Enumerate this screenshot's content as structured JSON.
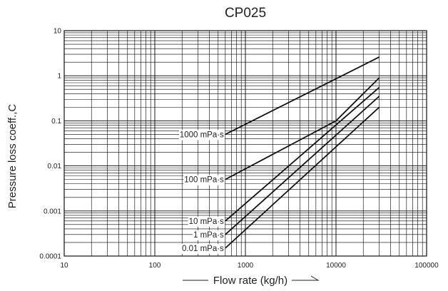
{
  "chart_data": {
    "type": "line",
    "title": "CP025",
    "xlabel": "Flow rate (kg/h)",
    "ylabel": "Pressure loss coeff.,C",
    "x_scale": "log",
    "y_scale": "log",
    "xlim": [
      10,
      100000
    ],
    "ylim": [
      0.0001,
      10
    ],
    "grid": true,
    "x_ticks": [
      10,
      100,
      1000,
      10000,
      100000
    ],
    "x_tick_labels": [
      "10",
      "100",
      "1000",
      "10000",
      "100000"
    ],
    "y_ticks": [
      0.0001,
      0.001,
      0.01,
      0.1,
      1,
      10
    ],
    "y_tick_labels": [
      "0.0001",
      "0.001",
      "0.01",
      "0.1",
      "1",
      "10"
    ],
    "series": [
      {
        "name": "1000 mPa·s",
        "x": [
          600,
          30000
        ],
        "y": [
          0.05,
          2.6
        ]
      },
      {
        "name": "100 mPa·s",
        "x": [
          600,
          10000,
          30000
        ],
        "y": [
          0.005,
          0.1,
          0.9
        ]
      },
      {
        "name": "10 mPa·s",
        "x": [
          600,
          30000
        ],
        "y": [
          0.0006,
          0.55
        ]
      },
      {
        "name": "1 mPa·s",
        "x": [
          600,
          30000
        ],
        "y": [
          0.0003,
          0.35
        ]
      },
      {
        "name": "0.01 mPa·s",
        "x": [
          600,
          30000
        ],
        "y": [
          0.00015,
          0.2
        ]
      }
    ]
  }
}
